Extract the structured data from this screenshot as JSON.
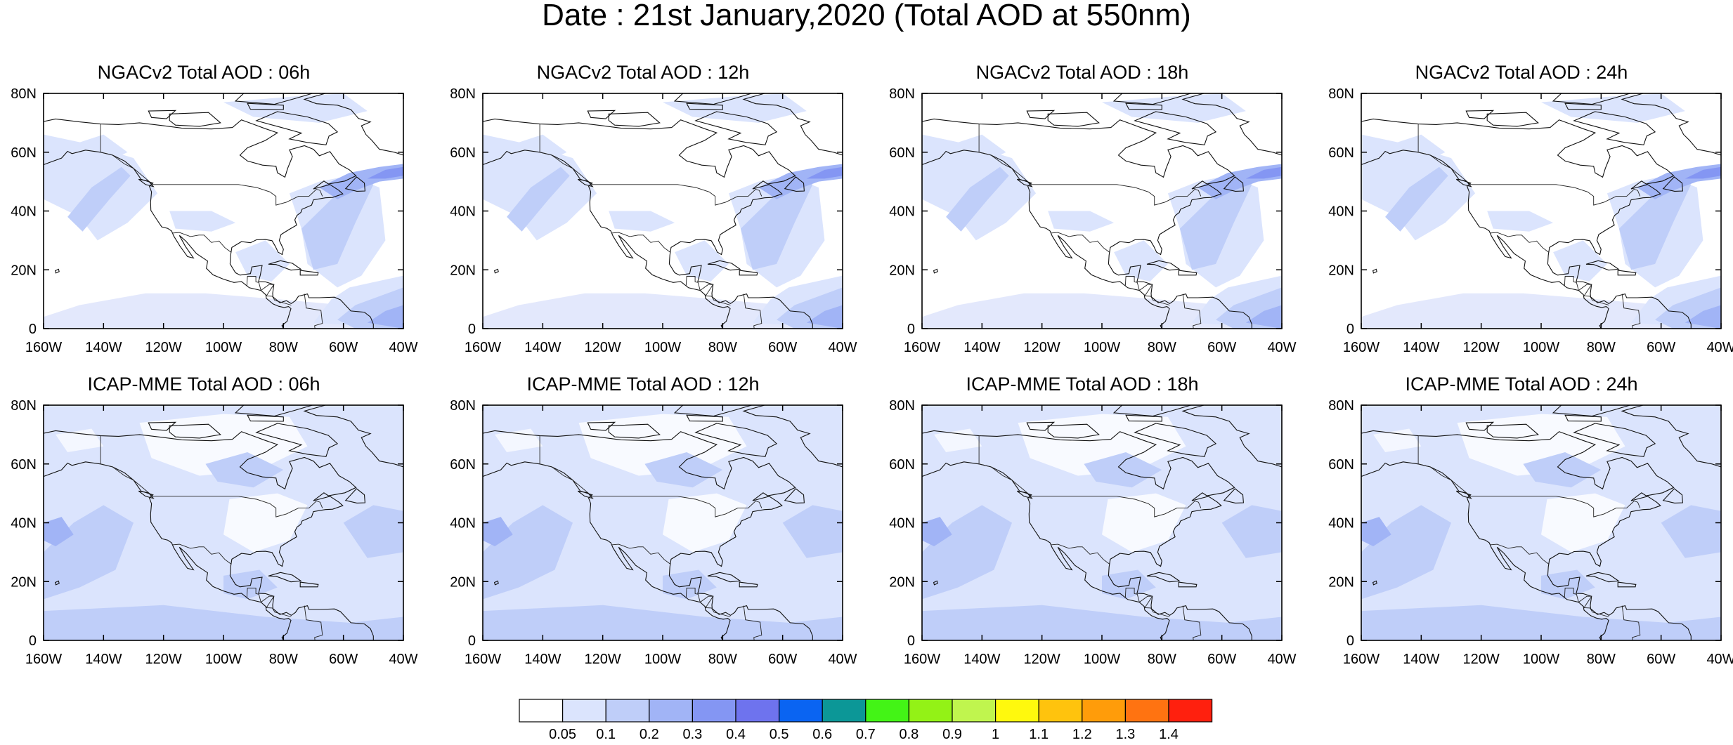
{
  "title": "Date : 21st January,2020 (Total AOD at 550nm)",
  "panels": [
    {
      "title": "NGACv2 Total AOD : 06h",
      "model": "NGACv2",
      "hour": "06h"
    },
    {
      "title": "NGACv2 Total AOD : 12h",
      "model": "NGACv2",
      "hour": "12h"
    },
    {
      "title": "NGACv2 Total AOD : 18h",
      "model": "NGACv2",
      "hour": "18h"
    },
    {
      "title": "NGACv2 Total AOD : 24h",
      "model": "NGACv2",
      "hour": "24h"
    },
    {
      "title": "ICAP-MME Total AOD : 06h",
      "model": "ICAP-MME",
      "hour": "06h"
    },
    {
      "title": "ICAP-MME Total AOD : 12h",
      "model": "ICAP-MME",
      "hour": "12h"
    },
    {
      "title": "ICAP-MME Total AOD : 18h",
      "model": "ICAP-MME",
      "hour": "18h"
    },
    {
      "title": "ICAP-MME Total AOD : 24h",
      "model": "ICAP-MME",
      "hour": "24h"
    }
  ],
  "axes": {
    "lat_ticks": [
      "0",
      "20N",
      "40N",
      "60N",
      "80N"
    ],
    "lon_ticks": [
      "160W",
      "140W",
      "120W",
      "100W",
      "80W",
      "60W",
      "40W"
    ],
    "lat_range": [
      0,
      80
    ],
    "lon_range": [
      -160,
      -40
    ]
  },
  "colorbar": {
    "labels": [
      "0.05",
      "0.1",
      "0.2",
      "0.3",
      "0.4",
      "0.5",
      "0.6",
      "0.7",
      "0.8",
      "0.9",
      "1",
      "1.1",
      "1.2",
      "1.3",
      "1.4"
    ],
    "colors": [
      "#ffffff",
      "#dbe4fd",
      "#bfcef9",
      "#a1b4f6",
      "#8496f3",
      "#6e73ee",
      "#0a64f2",
      "#0c9797",
      "#43f416",
      "#93f216",
      "#c0f54e",
      "#fff90d",
      "#ffc30d",
      "#ff9c0a",
      "#ff7311",
      "#ff200e"
    ]
  }
}
